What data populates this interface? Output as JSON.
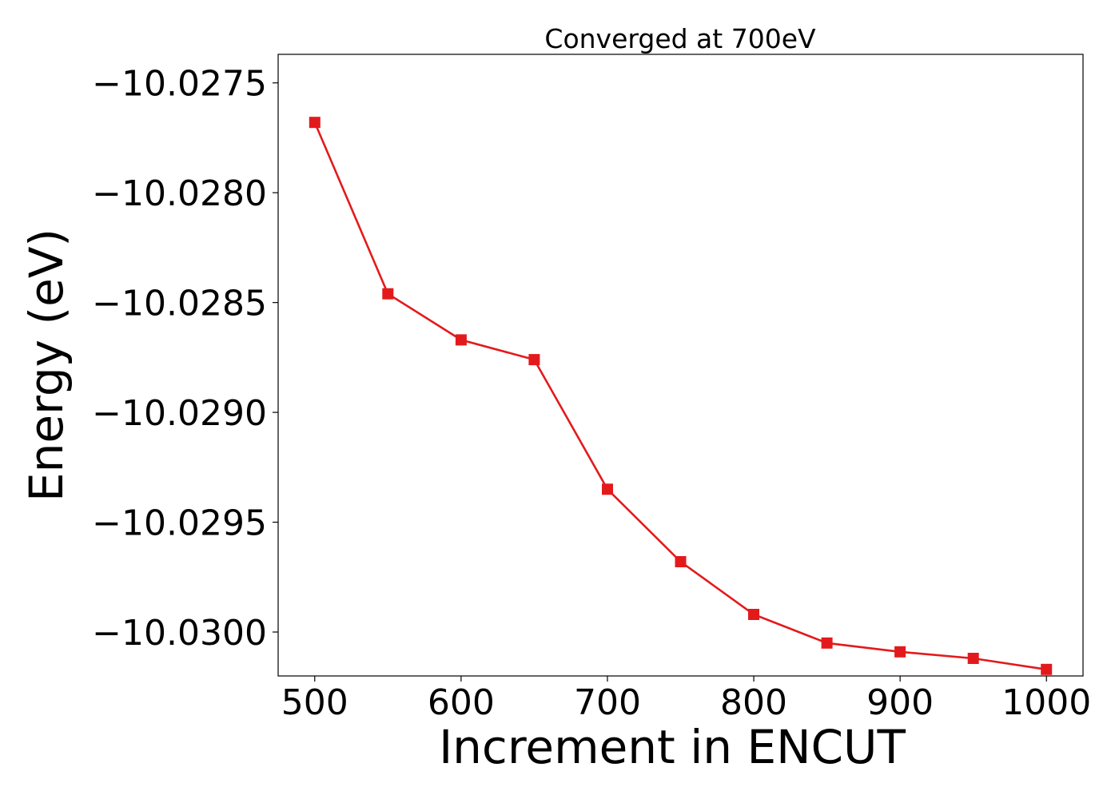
{
  "chart_data": {
    "type": "line",
    "title": "Converged at 700eV",
    "xlabel": "Increment in ENCUT",
    "ylabel": "Energy (eV)",
    "x": [
      500,
      550,
      600,
      650,
      700,
      750,
      800,
      850,
      900,
      950,
      1000
    ],
    "series": [
      {
        "values": [
          -10.02768,
          -10.02846,
          -10.02867,
          -10.02876,
          -10.02935,
          -10.02968,
          -10.02992,
          -10.03005,
          -10.03009,
          -10.03012,
          -10.03017
        ]
      }
    ],
    "xticks": [
      500,
      600,
      700,
      800,
      900,
      1000
    ],
    "xtick_labels": [
      "500",
      "600",
      "700",
      "800",
      "900",
      "1000"
    ],
    "yticks": [
      -10.0275,
      -10.028,
      -10.0285,
      -10.029,
      -10.0295,
      -10.03
    ],
    "ytick_labels": [
      "−10.0275",
      "−10.0280",
      "−10.0285",
      "−10.0290",
      "−10.0295",
      "−10.0300"
    ],
    "xlim": [
      475,
      1025
    ],
    "ylim": [
      -10.0302,
      -10.02737
    ],
    "grid": false,
    "line_color": "#e31a1c",
    "marker": "square"
  }
}
